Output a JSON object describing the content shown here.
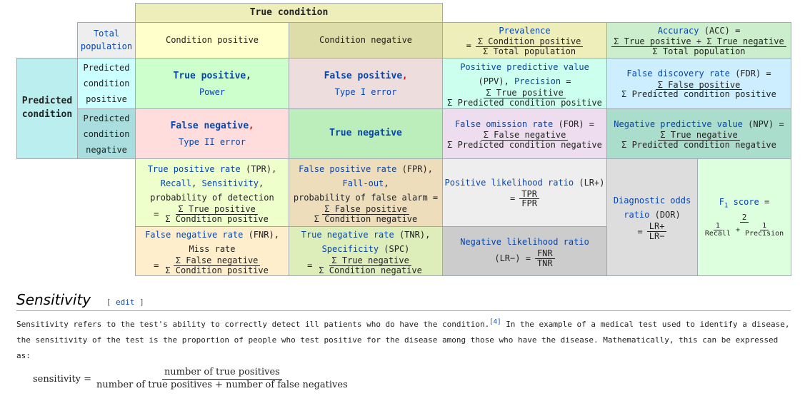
{
  "table": {
    "true_condition": "True condition",
    "total_population_1": "Total",
    "total_population_2": "population",
    "condition_positive": "Condition positive",
    "condition_negative": "Condition negative",
    "prevalence": {
      "title": "Prevalence",
      "eq": "=",
      "num": "Σ Condition positive",
      "den": "Σ Total population"
    },
    "accuracy": {
      "title_link": "Accuracy",
      "title_rest": " (ACC) =",
      "num": "Σ True positive + Σ True negative",
      "den": "Σ Total population"
    },
    "predicted_condition_1": "Predicted",
    "predicted_condition_2": "condition",
    "pred_positive": [
      "Predicted",
      "condition",
      "positive"
    ],
    "pred_negative": [
      "Predicted",
      "condition",
      "negative"
    ],
    "tp": {
      "title": "True positive",
      "comma": ",",
      "sub": "Power"
    },
    "fp": {
      "title": "False positive",
      "comma": ",",
      "sub": "Type I error"
    },
    "fn": {
      "title": "False negative",
      "comma": ",",
      "sub": "Type II error"
    },
    "tn": {
      "title": "True negative"
    },
    "ppv": {
      "link1": "Positive predictive value",
      "line2_a": "(PPV), ",
      "link2": "Precision",
      "line2_b": " =",
      "num": "Σ True positive",
      "den": "Σ Predicted condition positive"
    },
    "fdr": {
      "link": "False discovery rate",
      "rest": " (FDR) =",
      "num": "Σ False positive",
      "den": "Σ Predicted condition positive"
    },
    "for": {
      "link": "False omission rate",
      "rest": " (FOR) =",
      "num": "Σ False negative",
      "den": "Σ Predicted condition negative"
    },
    "npv": {
      "link": "Negative predictive value",
      "rest": " (NPV) =",
      "num": "Σ True negative",
      "den": "Σ Predicted condition negative"
    },
    "tpr": {
      "link": "True positive rate",
      "rest": " (TPR),",
      "link2": "Recall",
      "sep": ", ",
      "link3": "Sensitivity",
      "sep2": ",",
      "line3": "probability of detection",
      "eq": "=",
      "num": "Σ True positive",
      "den": "Σ Condition positive"
    },
    "fpr": {
      "link": "False positive rate",
      "rest": " (FPR),",
      "link2": "Fall-out",
      "sep": ",",
      "line3": "probability of false alarm =",
      "num": "Σ False positive",
      "den": "Σ Condition negative"
    },
    "fnr": {
      "link": "False negative rate",
      "rest": " (FNR),",
      "line2": "Miss rate",
      "eq": "=",
      "num": "Σ False negative",
      "den": "Σ Condition positive"
    },
    "tnr": {
      "link": "True negative rate",
      "rest": " (TNR),",
      "link2": "Specificity",
      "rest2": " (SPC)",
      "eq": "=",
      "num": "Σ True negative",
      "den": "Σ Condition negative"
    },
    "lrp": {
      "link": "Positive likelihood ratio",
      "rest": " (LR+)",
      "eq": "=",
      "num": "TPR",
      "den": "FPR"
    },
    "lrn": {
      "link": "Negative likelihood ratio",
      "pre": "(LR−) =",
      "num": "FNR",
      "den": "TNR"
    },
    "dor": {
      "link1": "Diagnostic odds",
      "link2": "ratio",
      "rest": " (DOR)",
      "eq": "=",
      "num": "LR+",
      "den": "LR−"
    },
    "f1": {
      "link_a": "F",
      "link_sub": "1",
      "link_b": " score",
      "eq": " =",
      "num": "2",
      "den_a_num": "1",
      "den_a_den": "Recall",
      "plus": "+",
      "den_b_num": "1",
      "den_b_den": "Precision"
    }
  },
  "section": {
    "title": "Sensitivity",
    "edit_open": "[ ",
    "edit": "edit",
    "edit_close": " ]",
    "para_a": "Sensitivity refers to the test's ability to correctly detect ill patients who do have the condition.",
    "cite": "[4]",
    "para_b": " In the example of a medical test used to identify a disease, the sensitivity of the test is the proportion of people who test positive for the disease among those who have the disease. Mathematically, this can be expressed as:",
    "formula_lhs": "sensitivity =",
    "formula_num": "number of true positives",
    "formula_den": "number of true positives + number of false negatives"
  },
  "colors": {
    "header_yellow": "#eeeebb",
    "cond_pos": "#ffffcc",
    "cond_neg": "#ddddaa",
    "tp": "#ccffcc",
    "fp": "#eedddd",
    "fn": "#ffdddd",
    "tn": "#bbeebb",
    "predicted": "#bbeeee",
    "gray": "#eeeeee",
    "link": "#0645ad"
  }
}
